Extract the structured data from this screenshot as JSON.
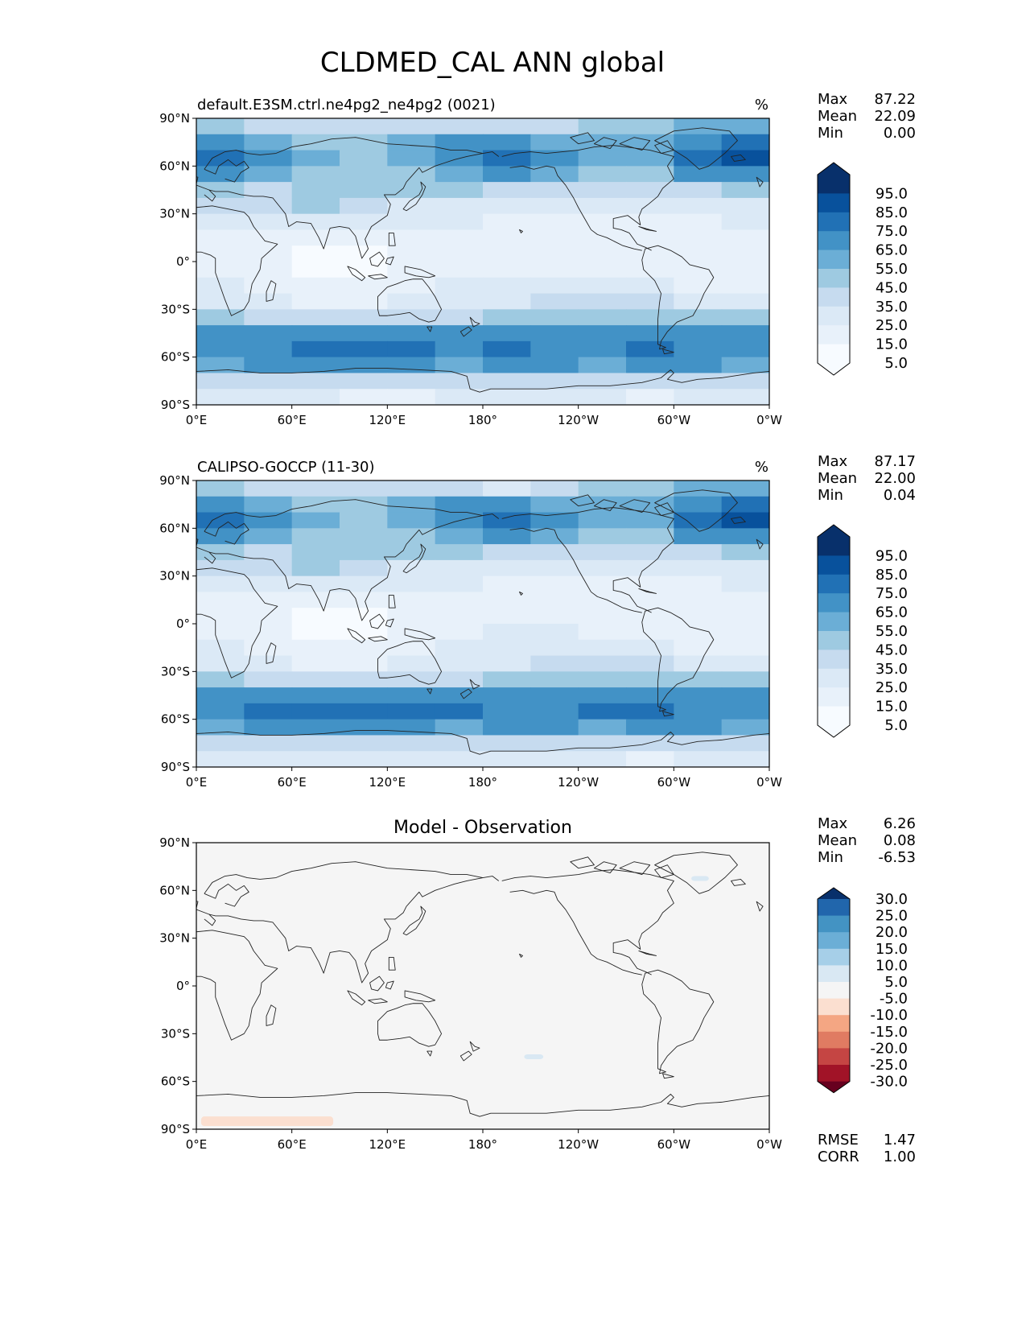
{
  "title": "CLDMED_CAL ANN global",
  "axes": {
    "x_ticks": [
      "0°E",
      "60°E",
      "120°E",
      "180°",
      "120°W",
      "60°W",
      "0°W"
    ],
    "y_ticks": [
      "90°N",
      "60°N",
      "30°N",
      "0°",
      "30°S",
      "60°S",
      "90°S"
    ]
  },
  "chart_data": [
    {
      "type": "heatmap",
      "title": "default.E3SM.ctrl.ne4pg2_ne4pg2 (0021)",
      "units": "%",
      "stats": {
        "Max": "87.22",
        "Mean": "22.09",
        "Min": "0.00"
      },
      "colorbar": {
        "labels": [
          "95.0",
          "85.0",
          "75.0",
          "65.0",
          "55.0",
          "45.0",
          "35.0",
          "25.0",
          "15.0",
          "5.0"
        ],
        "colors": [
          "#08306b",
          "#08519c",
          "#2171b5",
          "#4292c6",
          "#6baed6",
          "#9ecae1",
          "#c6dbef",
          "#dbe9f6",
          "#e8f1fa",
          "#f7fbff"
        ]
      },
      "lat": [
        85,
        75,
        65,
        55,
        45,
        35,
        25,
        15,
        5,
        -5,
        -15,
        -25,
        -35,
        -45,
        -55,
        -65,
        -75,
        -85
      ],
      "lon_centers": [
        15,
        45,
        75,
        105,
        135,
        165,
        195,
        225,
        255,
        285,
        315,
        345
      ],
      "values": [
        [
          35,
          30,
          25,
          30,
          30,
          25,
          25,
          30,
          35,
          40,
          45,
          45
        ],
        [
          55,
          45,
          35,
          35,
          45,
          55,
          55,
          50,
          45,
          45,
          55,
          65
        ],
        [
          70,
          55,
          45,
          40,
          45,
          60,
          65,
          60,
          50,
          50,
          65,
          78
        ],
        [
          55,
          45,
          40,
          40,
          40,
          50,
          55,
          50,
          40,
          40,
          55,
          60
        ],
        [
          35,
          30,
          35,
          35,
          35,
          35,
          30,
          30,
          25,
          25,
          30,
          35
        ],
        [
          25,
          25,
          35,
          30,
          20,
          20,
          20,
          15,
          15,
          15,
          20,
          20
        ],
        [
          15,
          15,
          20,
          15,
          15,
          15,
          10,
          10,
          8,
          8,
          12,
          15
        ],
        [
          10,
          5,
          5,
          5,
          8,
          8,
          5,
          5,
          5,
          5,
          5,
          8
        ],
        [
          8,
          5,
          3,
          3,
          5,
          5,
          5,
          8,
          10,
          10,
          5,
          5
        ],
        [
          12,
          5,
          3,
          3,
          5,
          8,
          12,
          12,
          10,
          8,
          10,
          10
        ],
        [
          15,
          8,
          5,
          5,
          8,
          15,
          18,
          18,
          15,
          15,
          12,
          12
        ],
        [
          20,
          15,
          12,
          10,
          15,
          20,
          22,
          25,
          25,
          25,
          20,
          20
        ],
        [
          35,
          30,
          30,
          30,
          30,
          30,
          35,
          40,
          40,
          40,
          35,
          35
        ],
        [
          55,
          55,
          55,
          55,
          55,
          55,
          55,
          55,
          55,
          60,
          55,
          55
        ],
        [
          60,
          60,
          65,
          70,
          65,
          60,
          65,
          60,
          60,
          70,
          60,
          55
        ],
        [
          50,
          55,
          55,
          60,
          55,
          50,
          55,
          55,
          50,
          55,
          55,
          50
        ],
        [
          25,
          25,
          30,
          30,
          25,
          25,
          25,
          30,
          30,
          30,
          25,
          25
        ],
        [
          15,
          15,
          15,
          10,
          10,
          15,
          20,
          20,
          15,
          10,
          15,
          15
        ]
      ]
    },
    {
      "type": "heatmap",
      "title": "CALIPSO-GOCCP (11-30)",
      "units": "%",
      "stats": {
        "Max": "87.17",
        "Mean": "22.00",
        "Min": "0.04"
      },
      "colorbar": {
        "labels": [
          "95.0",
          "85.0",
          "75.0",
          "65.0",
          "55.0",
          "45.0",
          "35.0",
          "25.0",
          "15.0",
          "5.0"
        ],
        "colors": [
          "#08306b",
          "#08519c",
          "#2171b5",
          "#4292c6",
          "#6baed6",
          "#9ecae1",
          "#c6dbef",
          "#dbe9f6",
          "#e8f1fa",
          "#f7fbff"
        ]
      },
      "lat": [
        85,
        75,
        65,
        55,
        45,
        35,
        25,
        15,
        5,
        -5,
        -15,
        -25,
        -35,
        -45,
        -55,
        -65,
        -75,
        -85
      ],
      "lon_centers": [
        15,
        45,
        75,
        105,
        135,
        165,
        195,
        225,
        255,
        285,
        315,
        345
      ],
      "values": [
        [
          35,
          30,
          25,
          30,
          30,
          25,
          20,
          30,
          35,
          40,
          45,
          45
        ],
        [
          55,
          45,
          35,
          35,
          45,
          55,
          55,
          50,
          45,
          45,
          55,
          65
        ],
        [
          70,
          55,
          45,
          40,
          45,
          60,
          65,
          60,
          50,
          50,
          65,
          78
        ],
        [
          55,
          45,
          40,
          40,
          40,
          50,
          55,
          50,
          40,
          40,
          55,
          60
        ],
        [
          35,
          30,
          35,
          35,
          35,
          35,
          30,
          30,
          25,
          25,
          30,
          35
        ],
        [
          25,
          25,
          35,
          30,
          20,
          20,
          20,
          15,
          15,
          15,
          20,
          20
        ],
        [
          15,
          15,
          20,
          15,
          15,
          15,
          10,
          10,
          8,
          8,
          12,
          15
        ],
        [
          10,
          5,
          5,
          5,
          8,
          8,
          5,
          5,
          5,
          5,
          5,
          8
        ],
        [
          8,
          5,
          3,
          3,
          5,
          5,
          8,
          10,
          10,
          10,
          5,
          5
        ],
        [
          12,
          5,
          3,
          3,
          5,
          12,
          15,
          15,
          10,
          8,
          10,
          10
        ],
        [
          15,
          8,
          5,
          5,
          8,
          15,
          18,
          18,
          15,
          15,
          12,
          12
        ],
        [
          20,
          15,
          12,
          10,
          15,
          20,
          22,
          25,
          25,
          25,
          20,
          20
        ],
        [
          35,
          30,
          30,
          30,
          30,
          30,
          35,
          40,
          40,
          40,
          35,
          35
        ],
        [
          55,
          55,
          55,
          60,
          55,
          55,
          55,
          55,
          55,
          60,
          55,
          55
        ],
        [
          60,
          65,
          65,
          70,
          65,
          65,
          60,
          60,
          65,
          70,
          60,
          55
        ],
        [
          50,
          55,
          55,
          60,
          55,
          50,
          55,
          55,
          50,
          55,
          55,
          50
        ],
        [
          25,
          25,
          30,
          30,
          25,
          25,
          25,
          30,
          30,
          30,
          25,
          25
        ],
        [
          15,
          15,
          15,
          15,
          15,
          15,
          20,
          20,
          15,
          10,
          15,
          15
        ]
      ]
    },
    {
      "type": "heatmap",
      "title": "Model - Observation",
      "units": "",
      "stats": {
        "Max": "6.26",
        "Mean": "0.08",
        "Min": "-6.53"
      },
      "metrics": {
        "RMSE": "1.47",
        "CORR": "1.00"
      },
      "colorbar": {
        "labels": [
          "30.0",
          "25.0",
          "20.0",
          "15.0",
          "10.0",
          "5.0",
          "-5.0",
          "-10.0",
          "-15.0",
          "-20.0",
          "-25.0",
          "-30.0"
        ],
        "colors": [
          "#08306b",
          "#2166ac",
          "#4393c3",
          "#6baed6",
          "#a6cfe8",
          "#d9e8f3",
          "#f5f5f5",
          "#fbdfd0",
          "#f4a683",
          "#e07b62",
          "#c54543",
          "#a11327",
          "#67001f"
        ]
      },
      "background_value": 0,
      "anomalies": [
        {
          "label": "southern ocean patch",
          "lon_range": [
            3,
            86
          ],
          "lat_range": [
            -88,
            -82
          ],
          "value": -6
        },
        {
          "label": "south pacific patch",
          "lon_range": [
            206,
            218
          ],
          "lat_range": [
            -46,
            -43
          ],
          "value": 6
        },
        {
          "label": "north atlantic patch",
          "lon_range": [
            311,
            322
          ],
          "lat_range": [
            66,
            69
          ],
          "value": 6
        }
      ]
    }
  ]
}
